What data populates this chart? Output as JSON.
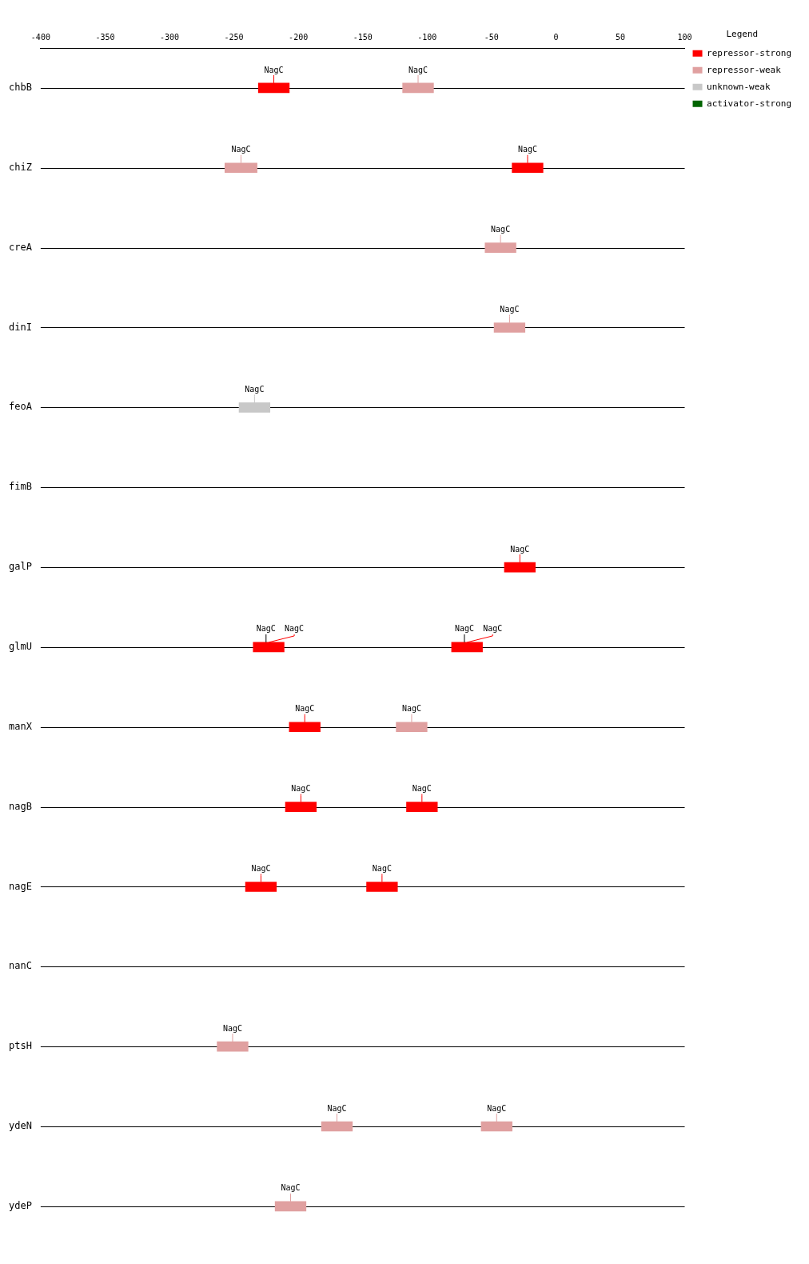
{
  "chart_data": {
    "type": "bar",
    "orientation": "horizontal",
    "legend_title": "Legend",
    "legend": "top right",
    "categories": [
      "chbB",
      "chiZ",
      "creA",
      "dinI",
      "feoA",
      "fimB",
      "galP",
      "glmU",
      "manX",
      "nagB",
      "nagE",
      "nanC",
      "ptsH",
      "ydeN",
      "ydeP"
    ],
    "grid": "y",
    "xlim": [
      -400,
      100
    ],
    "xticks": [
      -400,
      -350,
      -300,
      -250,
      -200,
      -150,
      -100,
      -50,
      0,
      50,
      100
    ],
    "series": [
      {
        "name": "repressor-strong",
        "color": "#ff0000",
        "base": [
          -231,
          -34,
          null,
          null,
          null,
          null,
          -40,
          -235,
          -207,
          -210,
          -241,
          null,
          null,
          null,
          null
        ],
        "values": [
          24,
          24,
          null,
          null,
          null,
          null,
          24,
          24,
          24,
          24,
          24,
          null,
          null,
          null,
          null
        ],
        "value_labels": [
          "NagC",
          "NagC",
          null,
          null,
          null,
          null,
          "NagC",
          "NagC",
          "NagC",
          "NagC",
          "NagC",
          null,
          null,
          null,
          null
        ]
      },
      {
        "color": "#ff0000",
        "base": [
          null,
          null,
          null,
          null,
          null,
          null,
          null,
          -81,
          null,
          -116,
          -147,
          null,
          null,
          null,
          null
        ],
        "values": [
          null,
          null,
          null,
          null,
          null,
          null,
          null,
          24,
          null,
          24,
          24,
          null,
          null,
          null,
          null
        ],
        "value_labels": [
          null,
          null,
          null,
          null,
          null,
          null,
          null,
          "NagC",
          null,
          "NagC",
          "NagC",
          null,
          null,
          null,
          null
        ]
      },
      {
        "name": "repressor-weak",
        "color": "#e0a0a0",
        "base": [
          -119,
          -257,
          -55,
          -48,
          null,
          null,
          null,
          null,
          -124,
          null,
          null,
          null,
          -263,
          -182,
          -218
        ],
        "values": [
          24,
          25,
          24,
          24,
          null,
          null,
          null,
          null,
          24,
          null,
          null,
          null,
          24,
          24,
          24
        ],
        "value_labels": [
          "NagC",
          "NagC",
          "NagC",
          "NagC",
          null,
          null,
          null,
          null,
          "NagC",
          null,
          null,
          null,
          "NagC",
          "NagC",
          "NagC"
        ]
      },
      {
        "color": "#e0a0a0",
        "base": [
          null,
          null,
          null,
          null,
          null,
          null,
          null,
          null,
          null,
          null,
          null,
          null,
          null,
          -58,
          null
        ],
        "values": [
          null,
          null,
          null,
          null,
          null,
          null,
          null,
          null,
          null,
          null,
          null,
          null,
          null,
          24,
          null
        ],
        "value_labels": [
          null,
          null,
          null,
          null,
          null,
          null,
          null,
          null,
          null,
          null,
          null,
          null,
          null,
          "NagC",
          null
        ]
      },
      {
        "name": "unknown-weak",
        "color": "#c8c8c8",
        "base": [
          null,
          null,
          null,
          null,
          -246,
          null,
          null,
          null,
          null,
          null,
          null,
          null,
          null,
          null,
          null
        ],
        "values": [
          null,
          null,
          null,
          null,
          24,
          null,
          null,
          null,
          null,
          null,
          null,
          null,
          null,
          null,
          null
        ],
        "value_labels": [
          null,
          null,
          null,
          null,
          "NagC",
          null,
          null,
          null,
          null,
          null,
          null,
          null,
          null,
          null,
          null
        ]
      },
      {
        "name": "activator-strong",
        "color": "#006400",
        "base": [
          null,
          null,
          null,
          null,
          null,
          null,
          null,
          null,
          null,
          null,
          null,
          null,
          null,
          null,
          null
        ],
        "values": [
          null,
          null,
          null,
          null,
          null,
          null,
          null,
          null,
          null,
          null,
          null,
          null,
          null,
          null,
          null
        ]
      }
    ],
    "annotations": [
      {
        "text": "NagC",
        "x": -235,
        "y": "glmU"
      },
      {
        "text": "NagC",
        "x": -81,
        "y": "glmU"
      }
    ]
  }
}
